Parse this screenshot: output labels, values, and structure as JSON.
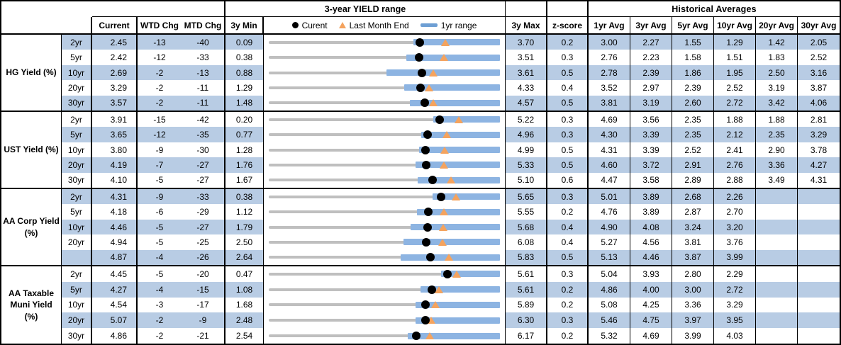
{
  "header": {
    "chart_group_title": "3-year YIELD range",
    "historical_group_title": "Historical Averages",
    "columns": {
      "current": "Current",
      "wtd": "WTD Chg",
      "mtd": "MTD Chg",
      "min": "3y Min",
      "max": "3y Max",
      "z": "z-score"
    },
    "avg_columns": [
      "1yr Avg",
      "3yr Avg",
      "5yr Avg",
      "10yr Avg",
      "20yr Avg",
      "30yr Avg"
    ],
    "legend": [
      {
        "marker": "current-dot",
        "label": "Curent"
      },
      {
        "marker": "last-month-triangle",
        "label": "Last Month End"
      },
      {
        "marker": "range-bar",
        "label": "1yr range"
      }
    ]
  },
  "colors": {
    "stripe_blue": "#B8CCE4",
    "bar_blue": "#8DB4E2",
    "track_gray": "#BFBFBF",
    "triangle_orange": "#F4A35E",
    "dot_black": "#000000"
  },
  "chart_data": {
    "type": "table",
    "title": "3-year YIELD range",
    "legend": [
      "Curent",
      "Last Month End",
      "1yr range"
    ],
    "value_columns": [
      "Current",
      "WTD Chg",
      "MTD Chg",
      "3y Min",
      "3y Max",
      "z-score",
      "1yr Avg",
      "3yr Avg",
      "5yr Avg",
      "10yr Avg",
      "20yr Avg",
      "30yr Avg"
    ],
    "groups": [
      {
        "name": "HG Yield (%)",
        "rows": [
          {
            "tenor": "2yr",
            "current": "2.45",
            "wtd": "-13",
            "mtd": "-40",
            "min": "0.09",
            "max": "3.70",
            "z": "0.2",
            "last_month": 2.85,
            "yr_low": 2.35,
            "yr_high": 3.7,
            "avgs": [
              "3.00",
              "2.27",
              "1.55",
              "1.29",
              "1.42",
              "2.05"
            ]
          },
          {
            "tenor": "5yr",
            "current": "2.42",
            "wtd": "-12",
            "mtd": "-33",
            "min": "0.38",
            "max": "3.51",
            "z": "0.3",
            "last_month": 2.75,
            "yr_low": 2.24,
            "yr_high": 3.51,
            "avgs": [
              "2.76",
              "2.23",
              "1.58",
              "1.51",
              "1.83",
              "2.52"
            ]
          },
          {
            "tenor": "10yr",
            "current": "2.69",
            "wtd": "-2",
            "mtd": "-13",
            "min": "0.88",
            "max": "3.61",
            "z": "0.5",
            "last_month": 2.82,
            "yr_low": 2.27,
            "yr_high": 3.61,
            "avgs": [
              "2.78",
              "2.39",
              "1.86",
              "1.95",
              "2.50",
              "3.16"
            ]
          },
          {
            "tenor": "20yr",
            "current": "3.29",
            "wtd": "-2",
            "mtd": "-11",
            "min": "1.29",
            "max": "4.33",
            "z": "0.4",
            "last_month": 3.4,
            "yr_low": 3.07,
            "yr_high": 4.33,
            "avgs": [
              "3.52",
              "2.97",
              "2.39",
              "2.52",
              "3.19",
              "3.87"
            ]
          },
          {
            "tenor": "30yr",
            "current": "3.57",
            "wtd": "-2",
            "mtd": "-11",
            "min": "1.48",
            "max": "4.57",
            "z": "0.5",
            "last_month": 3.68,
            "yr_low": 3.37,
            "yr_high": 4.57,
            "avgs": [
              "3.81",
              "3.19",
              "2.60",
              "2.72",
              "3.42",
              "4.06"
            ]
          }
        ]
      },
      {
        "name": "UST Yield (%)",
        "rows": [
          {
            "tenor": "2yr",
            "current": "3.91",
            "wtd": "-15",
            "mtd": "-42",
            "min": "0.20",
            "max": "5.22",
            "z": "0.3",
            "last_month": 4.33,
            "yr_low": 3.78,
            "yr_high": 5.22,
            "avgs": [
              "4.69",
              "3.56",
              "2.35",
              "1.88",
              "1.88",
              "2.81"
            ]
          },
          {
            "tenor": "5yr",
            "current": "3.65",
            "wtd": "-12",
            "mtd": "-35",
            "min": "0.77",
            "max": "4.96",
            "z": "0.3",
            "last_month": 4.0,
            "yr_low": 3.53,
            "yr_high": 4.96,
            "avgs": [
              "4.30",
              "3.39",
              "2.35",
              "2.12",
              "2.35",
              "3.29"
            ]
          },
          {
            "tenor": "10yr",
            "current": "3.80",
            "wtd": "-9",
            "mtd": "-30",
            "min": "1.28",
            "max": "4.99",
            "z": "0.5",
            "last_month": 4.1,
            "yr_low": 3.69,
            "yr_high": 4.99,
            "avgs": [
              "4.31",
              "3.39",
              "2.52",
              "2.41",
              "2.90",
              "3.78"
            ]
          },
          {
            "tenor": "20yr",
            "current": "4.19",
            "wtd": "-7",
            "mtd": "-27",
            "min": "1.76",
            "max": "5.33",
            "z": "0.5",
            "last_month": 4.46,
            "yr_low": 4.03,
            "yr_high": 5.33,
            "avgs": [
              "4.60",
              "3.72",
              "2.91",
              "2.76",
              "3.36",
              "4.27"
            ]
          },
          {
            "tenor": "30yr",
            "current": "4.10",
            "wtd": "-5",
            "mtd": "-27",
            "min": "1.67",
            "max": "5.10",
            "z": "0.6",
            "last_month": 4.37,
            "yr_low": 3.88,
            "yr_high": 5.1,
            "avgs": [
              "4.47",
              "3.58",
              "2.89",
              "2.88",
              "3.49",
              "4.31"
            ]
          }
        ]
      },
      {
        "name": "AA Corp Yield\n(%)",
        "rows": [
          {
            "tenor": "2yr",
            "current": "4.31",
            "wtd": "-9",
            "mtd": "-33",
            "min": "0.38",
            "max": "5.65",
            "z": "0.3",
            "last_month": 4.64,
            "yr_low": 4.12,
            "yr_high": 5.65,
            "avgs": [
              "5.01",
              "3.89",
              "2.68",
              "2.26",
              "",
              ""
            ]
          },
          {
            "tenor": "5yr",
            "current": "4.18",
            "wtd": "-6",
            "mtd": "-29",
            "min": "1.12",
            "max": "5.55",
            "z": "0.2",
            "last_month": 4.47,
            "yr_low": 3.96,
            "yr_high": 5.55,
            "avgs": [
              "4.76",
              "3.89",
              "2.87",
              "2.70",
              "",
              ""
            ]
          },
          {
            "tenor": "10yr",
            "current": "4.46",
            "wtd": "-5",
            "mtd": "-27",
            "min": "1.79",
            "max": "5.68",
            "z": "0.4",
            "last_month": 4.73,
            "yr_low": 4.18,
            "yr_high": 5.68,
            "avgs": [
              "4.90",
              "4.08",
              "3.24",
              "3.20",
              "",
              ""
            ]
          },
          {
            "tenor": "20yr",
            "current": "4.94",
            "wtd": "-5",
            "mtd": "-25",
            "min": "2.50",
            "max": "6.08",
            "z": "0.4",
            "last_month": 5.19,
            "yr_low": 4.59,
            "yr_high": 6.08,
            "avgs": [
              "5.27",
              "4.56",
              "3.81",
              "3.76",
              "",
              ""
            ]
          },
          {
            "tenor": "",
            "current": "4.87",
            "wtd": "-4",
            "mtd": "-26",
            "min": "2.64",
            "max": "5.83",
            "z": "0.5",
            "last_month": 5.13,
            "yr_low": 4.46,
            "yr_high": 5.83,
            "avgs": [
              "5.13",
              "4.46",
              "3.87",
              "3.99",
              "",
              ""
            ]
          }
        ]
      },
      {
        "name": "AA Taxable\nMuni Yield\n(%)",
        "rows": [
          {
            "tenor": "2yr",
            "current": "4.45",
            "wtd": "-5",
            "mtd": "-20",
            "min": "0.47",
            "max": "5.61",
            "z": "0.3",
            "last_month": 4.65,
            "yr_low": 4.3,
            "yr_high": 5.61,
            "avgs": [
              "5.04",
              "3.93",
              "2.80",
              "2.29",
              "",
              ""
            ]
          },
          {
            "tenor": "5yr",
            "current": "4.27",
            "wtd": "-4",
            "mtd": "-15",
            "min": "1.08",
            "max": "5.61",
            "z": "0.2",
            "last_month": 4.42,
            "yr_low": 4.05,
            "yr_high": 5.61,
            "avgs": [
              "4.86",
              "4.00",
              "3.00",
              "2.72",
              "",
              ""
            ]
          },
          {
            "tenor": "10yr",
            "current": "4.54",
            "wtd": "-3",
            "mtd": "-17",
            "min": "1.68",
            "max": "5.89",
            "z": "0.2",
            "last_month": 4.71,
            "yr_low": 4.35,
            "yr_high": 5.89,
            "avgs": [
              "5.08",
              "4.25",
              "3.36",
              "3.29",
              "",
              ""
            ]
          },
          {
            "tenor": "20yr",
            "current": "5.07",
            "wtd": "-2",
            "mtd": "-9",
            "min": "2.48",
            "max": "6.30",
            "z": "0.3",
            "last_month": 5.16,
            "yr_low": 4.9,
            "yr_high": 6.3,
            "avgs": [
              "5.46",
              "4.75",
              "3.97",
              "3.95",
              "",
              ""
            ]
          },
          {
            "tenor": "30yr",
            "current": "4.86",
            "wtd": "-2",
            "mtd": "-21",
            "min": "2.54",
            "max": "6.17",
            "z": "0.2",
            "last_month": 5.07,
            "yr_low": 4.72,
            "yr_high": 6.17,
            "avgs": [
              "5.32",
              "4.69",
              "3.99",
              "4.03",
              "",
              ""
            ]
          }
        ]
      }
    ]
  }
}
